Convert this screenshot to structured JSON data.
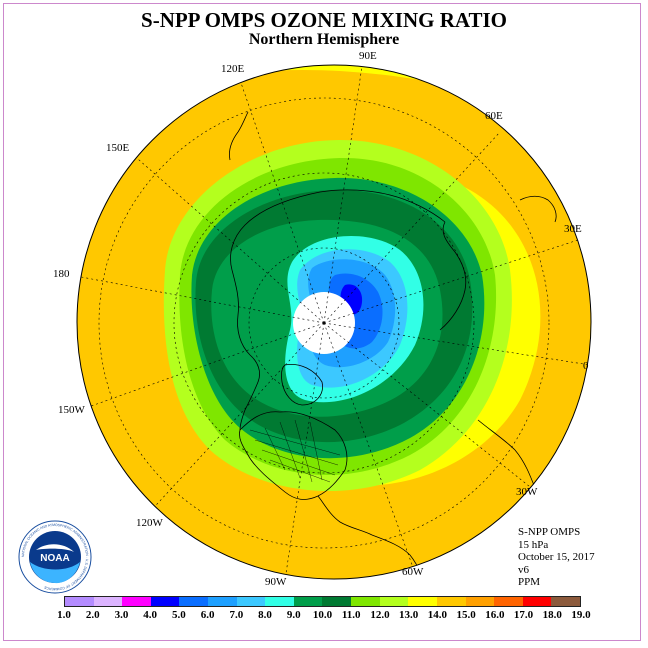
{
  "title": "S-NPP OMPS OZONE MIXING RATIO",
  "subtitle": "Northern Hemisphere",
  "longitude_labels": {
    "e90": "90E",
    "e120": "120E",
    "e60": "60E",
    "e150": "150E",
    "e30": "30E",
    "d180": "180",
    "d0": "0",
    "w150": "150W",
    "w30": "30W",
    "w120": "120W",
    "w60": "60W",
    "w90": "90W"
  },
  "info": {
    "instrument": "S-NPP OMPS",
    "level": "15 hPa",
    "date": "October 15, 2017",
    "version": "v6",
    "units": "PPM"
  },
  "logo": {
    "text": "NOAA",
    "ring_text": "NATIONAL OCEANIC AND ATMOSPHERIC ADMINISTRATION · U.S. DEPARTMENT OF COMMERCE"
  },
  "colorbar": {
    "ticks": [
      "1.0",
      "2.0",
      "3.0",
      "4.0",
      "5.0",
      "6.0",
      "7.0",
      "8.0",
      "9.0",
      "10.0",
      "11.0",
      "12.0",
      "13.0",
      "14.0",
      "15.0",
      "16.0",
      "17.0",
      "18.0",
      "19.0"
    ],
    "colors": [
      "#b48cff",
      "#dcb4ff",
      "#ff00ff",
      "#0000ff",
      "#0a6eff",
      "#1ea0ff",
      "#3cc8ff",
      "#32ffe6",
      "#009e4a",
      "#007a32",
      "#7fe600",
      "#b4ff1e",
      "#ffff00",
      "#ffc800",
      "#ffa000",
      "#ff6400",
      "#ff0000",
      "#8c5a3c"
    ]
  },
  "map": {
    "ocean_color": "#ffff00",
    "pole_mask_color": "#ffffff",
    "coast_color": "#000000"
  }
}
